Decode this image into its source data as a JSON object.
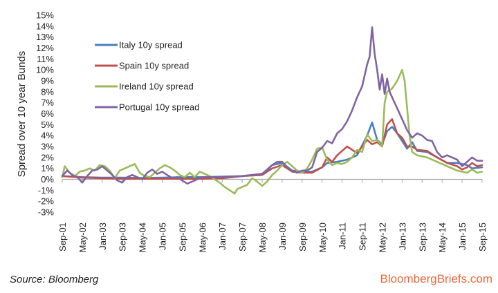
{
  "footer": {
    "source": "Source: Bloomberg",
    "brand": "BloombergBriefs.com"
  },
  "chart_data": {
    "type": "line",
    "title": "",
    "xlabel": "",
    "ylabel": "Spread over 10 year Bunds",
    "ylim": [
      -3,
      15
    ],
    "yticks": [
      "-3%",
      "-2%",
      "-1%",
      "0%",
      "1%",
      "2%",
      "3%",
      "4%",
      "5%",
      "6%",
      "7%",
      "8%",
      "9%",
      "10%",
      "11%",
      "12%",
      "13%",
      "14%",
      "15%"
    ],
    "ytick_values": [
      -3,
      -2,
      -1,
      0,
      1,
      2,
      3,
      4,
      5,
      6,
      7,
      8,
      9,
      10,
      11,
      12,
      13,
      14,
      15
    ],
    "xticks": [
      "Sep-01",
      "May-02",
      "Jan-03",
      "Sep-03",
      "May-04",
      "Jan-05",
      "Sep-05",
      "May-06",
      "Jan-07",
      "Sep-07",
      "May-08",
      "Jan-09",
      "Sep-09",
      "May-10",
      "Jan-11",
      "Sep-11",
      "May-12",
      "Jan-13",
      "Sep-13",
      "May-14",
      "Jan-15",
      "Sep-15"
    ],
    "x_start": "Sep-01",
    "x_end": "Sep-15",
    "x_months": 168,
    "legend_position": "top-left",
    "grid": false,
    "series": [
      {
        "name": "Italy 10y spread",
        "color": "#4a7ebb",
        "points": [
          [
            0,
            0.3
          ],
          [
            8,
            0.2
          ],
          [
            16,
            0.15
          ],
          [
            24,
            0.15
          ],
          [
            32,
            0.12
          ],
          [
            40,
            0.15
          ],
          [
            48,
            0.2
          ],
          [
            56,
            0.2
          ],
          [
            64,
            0.25
          ],
          [
            72,
            0.3
          ],
          [
            80,
            0.5
          ],
          [
            84,
            1.3
          ],
          [
            88,
            1.5
          ],
          [
            92,
            0.8
          ],
          [
            96,
            0.7
          ],
          [
            100,
            0.7
          ],
          [
            104,
            1.1
          ],
          [
            106,
            1.5
          ],
          [
            110,
            1.6
          ],
          [
            114,
            1.8
          ],
          [
            118,
            2.2
          ],
          [
            122,
            4.0
          ],
          [
            124,
            5.2
          ],
          [
            126,
            3.6
          ],
          [
            128,
            3.2
          ],
          [
            130,
            4.4
          ],
          [
            132,
            4.8
          ],
          [
            134,
            4.2
          ],
          [
            136,
            3.5
          ],
          [
            138,
            2.8
          ],
          [
            140,
            3.4
          ],
          [
            142,
            2.6
          ],
          [
            146,
            2.5
          ],
          [
            150,
            2.0
          ],
          [
            154,
            1.5
          ],
          [
            158,
            1.5
          ],
          [
            162,
            1.3
          ],
          [
            164,
            1.0
          ],
          [
            168,
            1.1
          ]
        ]
      },
      {
        "name": "Spain 10y spread",
        "color": "#c0504d",
        "points": [
          [
            0,
            0.3
          ],
          [
            8,
            0.15
          ],
          [
            16,
            0.1
          ],
          [
            24,
            0.05
          ],
          [
            32,
            0.05
          ],
          [
            40,
            0.05
          ],
          [
            48,
            0.05
          ],
          [
            56,
            0.05
          ],
          [
            64,
            0.1
          ],
          [
            72,
            0.3
          ],
          [
            80,
            0.4
          ],
          [
            84,
            1.0
          ],
          [
            88,
            1.3
          ],
          [
            92,
            0.7
          ],
          [
            96,
            0.6
          ],
          [
            100,
            0.6
          ],
          [
            104,
            1.1
          ],
          [
            106,
            2.0
          ],
          [
            108,
            1.6
          ],
          [
            110,
            2.2
          ],
          [
            114,
            3.0
          ],
          [
            118,
            2.4
          ],
          [
            122,
            3.6
          ],
          [
            124,
            3.2
          ],
          [
            126,
            3.4
          ],
          [
            128,
            3.0
          ],
          [
            130,
            5.0
          ],
          [
            132,
            5.5
          ],
          [
            134,
            4.2
          ],
          [
            136,
            3.8
          ],
          [
            138,
            3.0
          ],
          [
            140,
            3.0
          ],
          [
            142,
            2.7
          ],
          [
            146,
            2.6
          ],
          [
            150,
            2.0
          ],
          [
            154,
            1.5
          ],
          [
            158,
            1.2
          ],
          [
            160,
            0.9
          ],
          [
            162,
            1.1
          ],
          [
            164,
            1.5
          ],
          [
            166,
            1.2
          ],
          [
            168,
            1.3
          ]
        ]
      },
      {
        "name": "Ireland 10y spread",
        "color": "#9bbb59",
        "points": [
          [
            0,
            0.2
          ],
          [
            1,
            1.2
          ],
          [
            3,
            0.6
          ],
          [
            5,
            0.3
          ],
          [
            7,
            0.7
          ],
          [
            9,
            0.8
          ],
          [
            11,
            1.0
          ],
          [
            13,
            0.8
          ],
          [
            15,
            1.3
          ],
          [
            17,
            1.2
          ],
          [
            19,
            0.8
          ],
          [
            21,
            0.1
          ],
          [
            23,
            0.8
          ],
          [
            25,
            1.0
          ],
          [
            27,
            1.2
          ],
          [
            29,
            1.4
          ],
          [
            31,
            0.6
          ],
          [
            33,
            0.3
          ],
          [
            35,
            0.2
          ],
          [
            37,
            0.6
          ],
          [
            39,
            1.0
          ],
          [
            41,
            1.3
          ],
          [
            43,
            1.1
          ],
          [
            45,
            0.8
          ],
          [
            47,
            0.4
          ],
          [
            49,
            0.2
          ],
          [
            51,
            0.6
          ],
          [
            53,
            0.2
          ],
          [
            55,
            0.7
          ],
          [
            57,
            0.5
          ],
          [
            59,
            0.3
          ],
          [
            61,
            0.0
          ],
          [
            63,
            -0.3
          ],
          [
            65,
            -0.7
          ],
          [
            67,
            -1.0
          ],
          [
            69,
            -1.3
          ],
          [
            70,
            -0.9
          ],
          [
            72,
            -0.7
          ],
          [
            74,
            -0.5
          ],
          [
            76,
            0.1
          ],
          [
            78,
            -0.2
          ],
          [
            80,
            -0.6
          ],
          [
            82,
            -0.2
          ],
          [
            84,
            0.4
          ],
          [
            86,
            0.8
          ],
          [
            88,
            1.3
          ],
          [
            90,
            1.6
          ],
          [
            92,
            1.2
          ],
          [
            94,
            0.8
          ],
          [
            96,
            0.6
          ],
          [
            98,
            1.0
          ],
          [
            100,
            1.8
          ],
          [
            102,
            2.8
          ],
          [
            104,
            2.9
          ],
          [
            106,
            1.8
          ],
          [
            108,
            1.3
          ],
          [
            110,
            1.5
          ],
          [
            112,
            1.4
          ],
          [
            114,
            1.6
          ],
          [
            116,
            2.0
          ],
          [
            118,
            2.7
          ],
          [
            120,
            2.5
          ],
          [
            122,
            4.1
          ],
          [
            124,
            3.5
          ],
          [
            126,
            3.6
          ],
          [
            128,
            3.0
          ],
          [
            129,
            7.0
          ],
          [
            130,
            8.0
          ],
          [
            132,
            8.3
          ],
          [
            134,
            9.0
          ],
          [
            136,
            10.0
          ],
          [
            137,
            9.0
          ],
          [
            138,
            6.5
          ],
          [
            139,
            4.0
          ],
          [
            140,
            2.5
          ],
          [
            142,
            2.2
          ],
          [
            146,
            2.0
          ],
          [
            150,
            1.6
          ],
          [
            154,
            1.2
          ],
          [
            158,
            0.8
          ],
          [
            162,
            0.6
          ],
          [
            164,
            0.9
          ],
          [
            166,
            0.6
          ],
          [
            168,
            0.7
          ]
        ]
      },
      {
        "name": "Portugal 10y spread",
        "color": "#8064a2",
        "points": [
          [
            0,
            0.3
          ],
          [
            2,
            0.8
          ],
          [
            4,
            0.4
          ],
          [
            6,
            0.2
          ],
          [
            8,
            -0.3
          ],
          [
            10,
            0.3
          ],
          [
            12,
            0.8
          ],
          [
            14,
            0.9
          ],
          [
            16,
            1.2
          ],
          [
            18,
            0.8
          ],
          [
            20,
            0.4
          ],
          [
            22,
            -0.1
          ],
          [
            24,
            -0.3
          ],
          [
            26,
            0.2
          ],
          [
            28,
            0.4
          ],
          [
            30,
            0.2
          ],
          [
            32,
            0.0
          ],
          [
            34,
            0.6
          ],
          [
            36,
            0.9
          ],
          [
            38,
            0.5
          ],
          [
            40,
            0.7
          ],
          [
            42,
            0.4
          ],
          [
            44,
            0.1
          ],
          [
            46,
            0.2
          ],
          [
            48,
            -0.1
          ],
          [
            50,
            -0.4
          ],
          [
            52,
            -0.2
          ],
          [
            56,
            0.2
          ],
          [
            60,
            0.2
          ],
          [
            64,
            0.2
          ],
          [
            68,
            0.25
          ],
          [
            72,
            0.3
          ],
          [
            76,
            0.4
          ],
          [
            80,
            0.5
          ],
          [
            82,
            0.8
          ],
          [
            84,
            1.3
          ],
          [
            86,
            1.6
          ],
          [
            88,
            1.6
          ],
          [
            90,
            1.1
          ],
          [
            92,
            0.8
          ],
          [
            94,
            0.6
          ],
          [
            96,
            0.8
          ],
          [
            98,
            0.8
          ],
          [
            100,
            1.1
          ],
          [
            102,
            2.5
          ],
          [
            104,
            2.9
          ],
          [
            106,
            3.5
          ],
          [
            108,
            3.3
          ],
          [
            110,
            4.2
          ],
          [
            112,
            4.6
          ],
          [
            114,
            5.3
          ],
          [
            116,
            6.3
          ],
          [
            118,
            7.5
          ],
          [
            120,
            8.5
          ],
          [
            122,
            10.5
          ],
          [
            123,
            11.2
          ],
          [
            124,
            13.9
          ],
          [
            125,
            11.5
          ],
          [
            126,
            10.0
          ],
          [
            127,
            8.2
          ],
          [
            128,
            9.6
          ],
          [
            129,
            7.8
          ],
          [
            130,
            9.2
          ],
          [
            131,
            8.0
          ],
          [
            132,
            7.5
          ],
          [
            134,
            6.5
          ],
          [
            136,
            5.5
          ],
          [
            138,
            4.5
          ],
          [
            140,
            3.8
          ],
          [
            142,
            4.2
          ],
          [
            144,
            4.0
          ],
          [
            146,
            3.6
          ],
          [
            148,
            3.5
          ],
          [
            150,
            2.5
          ],
          [
            152,
            2.0
          ],
          [
            154,
            2.2
          ],
          [
            156,
            2.0
          ],
          [
            158,
            1.8
          ],
          [
            160,
            1.2
          ],
          [
            162,
            1.6
          ],
          [
            164,
            2.0
          ],
          [
            166,
            1.7
          ],
          [
            168,
            1.7
          ]
        ]
      }
    ]
  }
}
